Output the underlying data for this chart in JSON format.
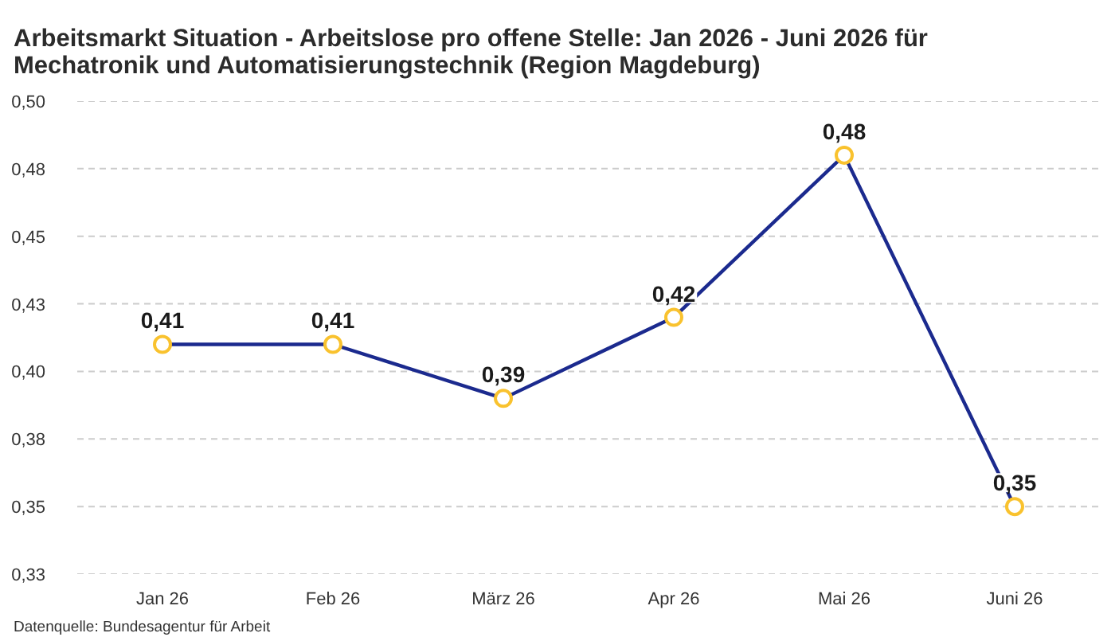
{
  "chart_data": {
    "type": "line",
    "title": "Arbeitsmarkt Situation - Arbeitslose pro offene Stelle: Jan 2026 - Juni 2026 für Mechatronik und Automatisierungstechnik (Region Magdeburg)",
    "annotations": [
      "Datenquelle: Bundesagentur für Arbeit"
    ],
    "categories": [
      "Jan 26",
      "Feb 26",
      "März 26",
      "Apr 26",
      "Mai 26",
      "Juni 26"
    ],
    "series": [
      {
        "color": "#1b2a8e",
        "colors": [
          "#f9c22e",
          "#f9c22e",
          "#f9c22e",
          "#f9c22e",
          "#f9c22e",
          "#f9c22e"
        ],
        "values": [
          0.41,
          0.41,
          0.39,
          0.42,
          0.48,
          0.35
        ],
        "value_labels": [
          "0,41",
          "0,41",
          "0,39",
          "0,42",
          "0,48",
          "0,35"
        ]
      }
    ],
    "ylim": [
      0.325,
      0.5
    ],
    "yticks": [
      {
        "value": 0.325,
        "label": "0,33"
      },
      {
        "value": 0.35,
        "label": "0,35"
      },
      {
        "value": 0.375,
        "label": "0,38"
      },
      {
        "value": 0.4,
        "label": "0,40"
      },
      {
        "value": 0.425,
        "label": "0,43"
      },
      {
        "value": 0.45,
        "label": "0,45"
      },
      {
        "value": 0.475,
        "label": "0,48"
      },
      {
        "value": 0.5,
        "label": "0,50"
      }
    ],
    "grid": "y",
    "marker": "circle",
    "line_style": "solid"
  }
}
